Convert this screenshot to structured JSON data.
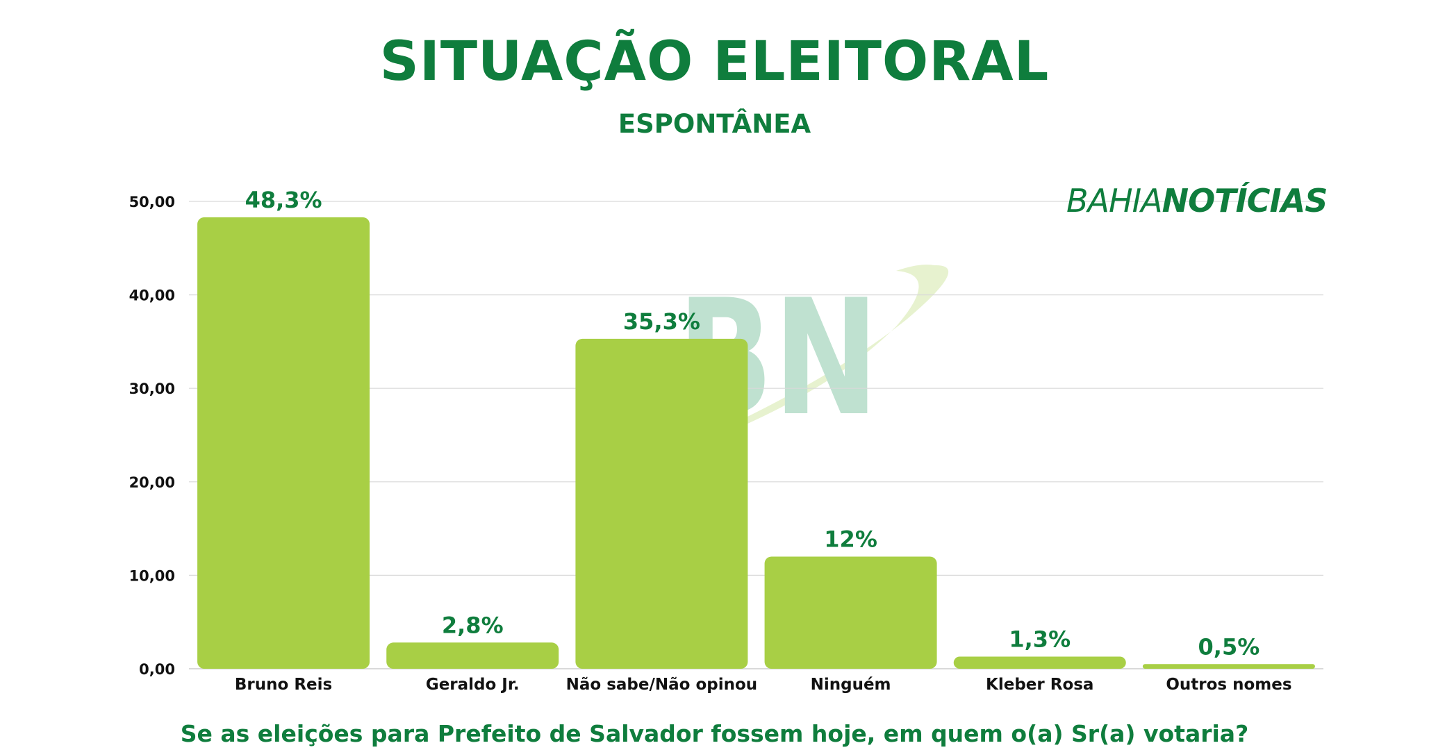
{
  "header": {
    "title": "SITUAÇÃO ELEITORAL",
    "subtitle": "ESPONTÂNEA"
  },
  "footer": {
    "question": "Se as eleições para Prefeito de Salvador fossem hoje, em quem o(a) Sr(a) votaria?"
  },
  "brand": {
    "part1": "BAHIA",
    "part2": "NOTÍCIAS",
    "watermark_text": "BN"
  },
  "colors": {
    "bar": "#a8cf45",
    "text_green": "#0f7d3d",
    "grid": "#d9d9d9",
    "watermark": "#8ccaaa"
  },
  "chart_data": {
    "type": "bar",
    "title": "SITUAÇÃO ELEITORAL",
    "subtitle": "ESPONTÂNEA",
    "categories": [
      "Bruno Reis",
      "Geraldo Jr.",
      "Não sabe/Não opinou",
      "Ninguém",
      "Kleber Rosa",
      "Outros nomes"
    ],
    "values": [
      48.3,
      2.8,
      35.3,
      12,
      1.3,
      0.5
    ],
    "data_labels": [
      "48,3%",
      "2,8%",
      "35,3%",
      "12%",
      "1,3%",
      "0,5%"
    ],
    "yticks": [
      "0,00",
      "10,00",
      "20,00",
      "30,00",
      "40,00",
      "50,00"
    ],
    "ytick_values": [
      0,
      10,
      20,
      30,
      40,
      50
    ],
    "ylim": [
      0,
      50
    ],
    "grid": true,
    "legend": "none"
  }
}
